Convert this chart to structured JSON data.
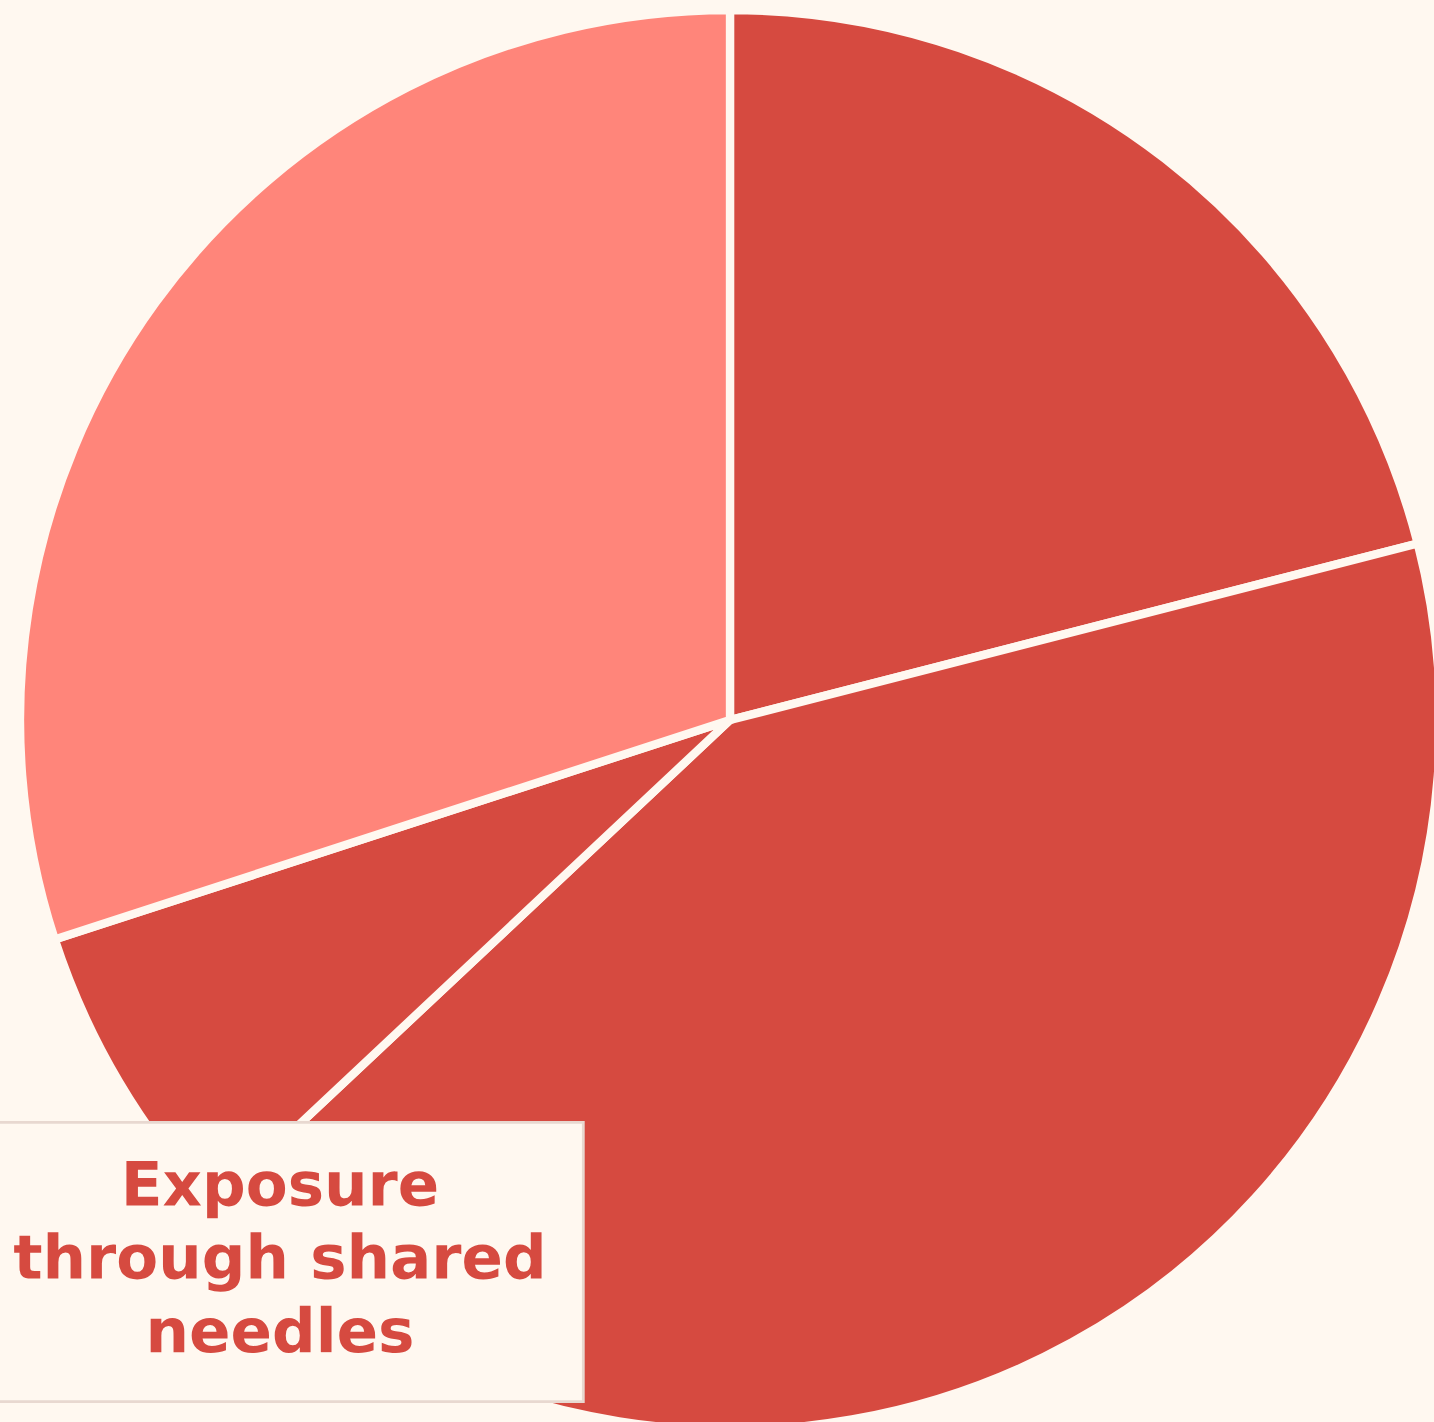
{
  "chart_data": {
    "type": "pie",
    "categories": [
      null,
      null,
      null,
      null
    ],
    "values": [
      21,
      42,
      7,
      30
    ],
    "colors": [
      "#d64a40",
      "#d64a40",
      "#d64a40",
      "#ff857a"
    ],
    "annotations": [
      "Exposure\nthrough shared\nneedles"
    ]
  }
}
